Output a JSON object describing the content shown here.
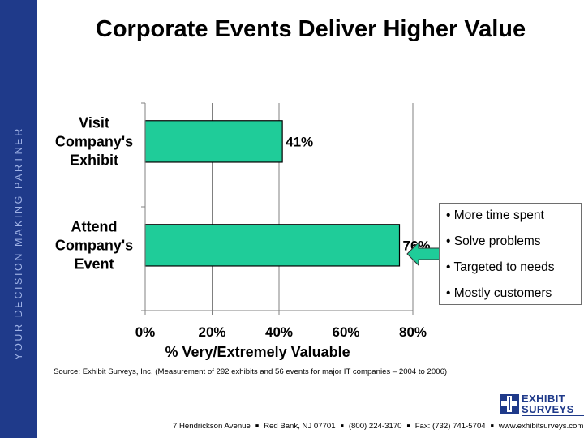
{
  "sidebar": {
    "tagline": "YOUR DECISION MAKING PARTNER"
  },
  "title": "Corporate Events Deliver Higher Value",
  "chart_data": {
    "type": "bar",
    "orientation": "horizontal",
    "categories": [
      {
        "lines": [
          "Visit",
          "Company's",
          "Exhibit"
        ]
      },
      {
        "lines": [
          "Attend",
          "Company's",
          "Event"
        ]
      }
    ],
    "values": [
      41,
      76
    ],
    "value_labels": [
      "41%",
      "76%"
    ],
    "xticks": [
      "0%",
      "20%",
      "40%",
      "60%",
      "80%"
    ],
    "xlim": [
      0,
      80
    ],
    "xlabel": "% Very/Extremely Valuable",
    "bar_color": "#1fcc99",
    "grid": "vertical"
  },
  "callout": {
    "items": [
      "• More time spent",
      "• Solve problems",
      "• Targeted to needs",
      "•  Mostly customers"
    ],
    "arrow_color": "#1fcc99"
  },
  "source": "Source: Exhibit Surveys, Inc. (Measurement of 292 exhibits and 56 events for major IT companies – 2004 to 2006)",
  "logo": {
    "line1": "EXHIBIT",
    "line2": "SURVEYS",
    "color": "#1f3a8a"
  },
  "footer": {
    "items": [
      "7 Hendrickson Avenue",
      "Red Bank, NJ 07701",
      "(800) 224-3170",
      "Fax: (732) 741-5704",
      "www.exhibitsurveys.com"
    ],
    "separator": "■"
  }
}
